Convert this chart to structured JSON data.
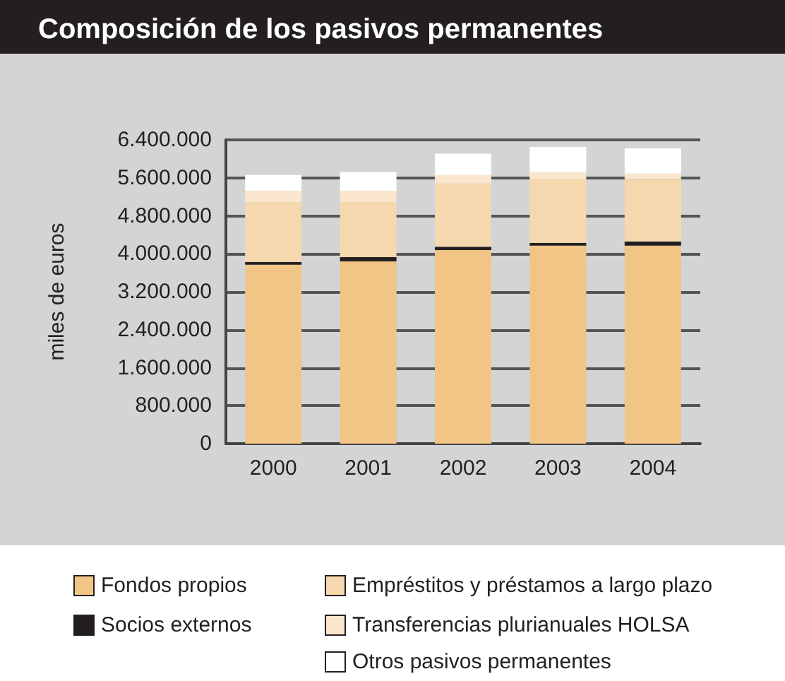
{
  "chart_data": {
    "type": "bar",
    "title": "Composición de los pasivos permanentes",
    "ylabel": "miles de euros",
    "categories": [
      "2000",
      "2001",
      "2002",
      "2003",
      "2004"
    ],
    "series": [
      {
        "name": "Fondos propios",
        "color": "#f0c586",
        "values": [
          3770000,
          3840000,
          4080000,
          4170000,
          4170000
        ]
      },
      {
        "name": "Socios externos",
        "color": "#231f20",
        "values": [
          60000,
          90000,
          70000,
          60000,
          90000
        ]
      },
      {
        "name": "Empréstitos y préstamos a largo plazo",
        "color": "#f5d8ae",
        "values": [
          1260000,
          1160000,
          1330000,
          1350000,
          1310000
        ]
      },
      {
        "name": "Transferencias plurianuales HOLSA",
        "color": "#f9e6cc",
        "values": [
          240000,
          240000,
          180000,
          140000,
          120000
        ]
      },
      {
        "name": "Otros pasivos permanentes",
        "color": "#ffffff",
        "values": [
          330000,
          390000,
          450000,
          530000,
          530000
        ]
      }
    ],
    "stacked": true,
    "ylim": [
      0,
      6400000
    ],
    "yticks": [
      {
        "value": 0,
        "label": "0"
      },
      {
        "value": 800000,
        "label": "800.000"
      },
      {
        "value": 1600000,
        "label": "1.600.000"
      },
      {
        "value": 2400000,
        "label": "2.400.000"
      },
      {
        "value": 3200000,
        "label": "3.200.000"
      },
      {
        "value": 4000000,
        "label": "4.000.000"
      },
      {
        "value": 4800000,
        "label": "4.800.000"
      },
      {
        "value": 5600000,
        "label": "5.600.000"
      },
      {
        "value": 6400000,
        "label": "6.400.000"
      }
    ],
    "grid": "y",
    "legend": "bottom"
  }
}
